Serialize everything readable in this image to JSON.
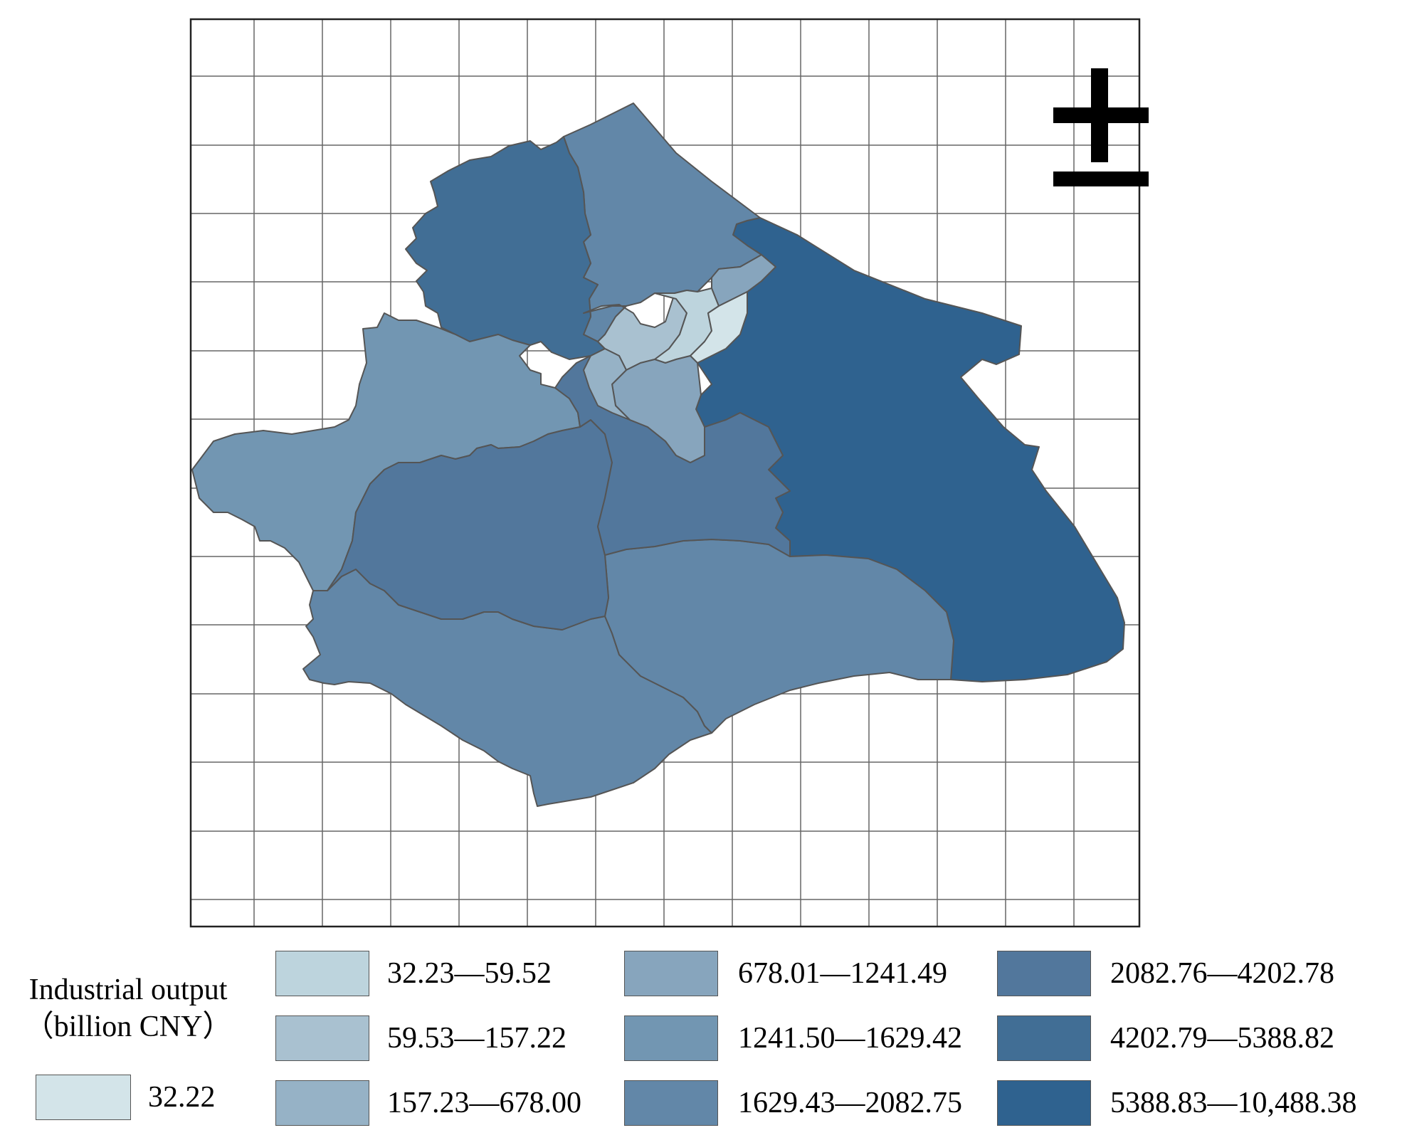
{
  "legend": {
    "title_line1": "Industrial output",
    "title_line2": "（billion CNY）",
    "base": {
      "label": "32.22",
      "color": "#d3e4e9"
    },
    "classes": [
      {
        "label": "32.23—59.52",
        "color": "#bdd4dd"
      },
      {
        "label": "59.53—157.22",
        "color": "#a9c1d0"
      },
      {
        "label": "157.23—678.00",
        "color": "#96b2c6"
      },
      {
        "label": "678.01—1241.49",
        "color": "#87a5bd"
      },
      {
        "label": "1241.50—1629.42",
        "color": "#7296b2"
      },
      {
        "label": "1629.43—2082.75",
        "color": "#6287a8"
      },
      {
        "label": "2082.76—4202.78",
        "color": "#52779c"
      },
      {
        "label": "4202.79—5388.82",
        "color": "#416e95"
      },
      {
        "label": "5388.83—10,488.38",
        "color": "#2f628f"
      }
    ]
  },
  "north_arrow": {
    "symbol": "north-arrow-icon"
  },
  "colors": {
    "border": "#555555",
    "grid": "#666666",
    "frame": "#222222"
  }
}
